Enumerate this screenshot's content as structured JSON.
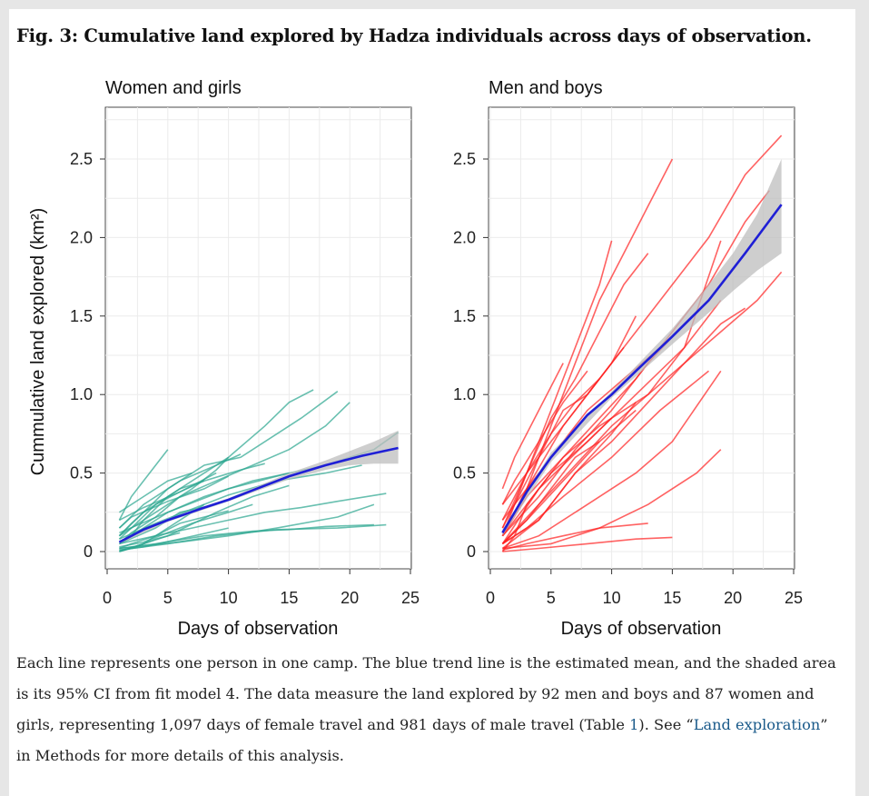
{
  "figure": {
    "title": "Fig. 3: Cumulative land explored by Hadza individuals across days of observation.",
    "caption_parts": {
      "p1": "Each line represents one person in one camp. The blue trend line is the estimated mean, and the shaded area is its 95% CI from fit model 4. The data measure the land explored by 92 men and boys and 87 women and girls, representing 1,097 days of female travel and 981 days of male travel (Table ",
      "link1": "1",
      "p2": "). See “",
      "link2": "Land exploration",
      "p3": "” in Methods for more details of this analysis."
    }
  },
  "chart_data": [
    {
      "type": "line",
      "title": "Women and girls",
      "xlabel": "Days of observation",
      "ylabel": "Cummulative land explored (km²)",
      "xlim": [
        0,
        25
      ],
      "ylim": [
        0,
        2.5
      ],
      "xticks": [
        "0",
        "5",
        "10",
        "15",
        "20",
        "25"
      ],
      "yticks": [
        "0",
        "0.5",
        "1.0",
        "1.5",
        "2.0",
        "2.5"
      ],
      "grid": true,
      "colors": {
        "individual": "#2aa58f",
        "trend": "#1f1fd6",
        "ci": "#bdbdbd"
      },
      "trend": {
        "x": [
          1,
          3,
          5,
          8,
          10,
          12,
          15,
          18,
          21,
          24
        ],
        "y": [
          0.06,
          0.14,
          0.2,
          0.28,
          0.33,
          0.39,
          0.48,
          0.55,
          0.61,
          0.66
        ]
      },
      "ci": {
        "x": [
          1,
          5,
          10,
          15,
          18,
          20,
          22,
          24
        ],
        "lower": [
          0.05,
          0.19,
          0.32,
          0.46,
          0.52,
          0.55,
          0.56,
          0.56
        ],
        "upper": [
          0.07,
          0.21,
          0.34,
          0.5,
          0.58,
          0.64,
          0.7,
          0.77
        ]
      },
      "individuals_count": 87,
      "sample_lines": [
        {
          "x": [
            1,
            2,
            3,
            5,
            8,
            10,
            13,
            15,
            17
          ],
          "y": [
            0.05,
            0.1,
            0.2,
            0.35,
            0.5,
            0.6,
            0.8,
            0.95,
            1.03
          ]
        },
        {
          "x": [
            1,
            3,
            5,
            8,
            11,
            14,
            16,
            19
          ],
          "y": [
            0.1,
            0.25,
            0.4,
            0.55,
            0.6,
            0.75,
            0.85,
            1.02
          ]
        },
        {
          "x": [
            1,
            2,
            4,
            6,
            9,
            12,
            15,
            18,
            20
          ],
          "y": [
            0.05,
            0.12,
            0.22,
            0.35,
            0.45,
            0.55,
            0.65,
            0.8,
            0.95
          ]
        },
        {
          "x": [
            1,
            3,
            5,
            8,
            12,
            15,
            18,
            20,
            22,
            24
          ],
          "y": [
            0.05,
            0.15,
            0.25,
            0.35,
            0.45,
            0.5,
            0.55,
            0.6,
            0.65,
            0.76
          ]
        },
        {
          "x": [
            1,
            2,
            4,
            5
          ],
          "y": [
            0.2,
            0.35,
            0.55,
            0.65
          ]
        },
        {
          "x": [
            1,
            3,
            6,
            9,
            11
          ],
          "y": [
            0.15,
            0.3,
            0.45,
            0.55,
            0.62
          ]
        },
        {
          "x": [
            1,
            4,
            7,
            10,
            13,
            16,
            19,
            23
          ],
          "y": [
            0.05,
            0.1,
            0.15,
            0.2,
            0.25,
            0.28,
            0.32,
            0.37
          ]
        },
        {
          "x": [
            1,
            4,
            8,
            12,
            15,
            18,
            22
          ],
          "y": [
            0.02,
            0.05,
            0.1,
            0.13,
            0.14,
            0.16,
            0.17
          ]
        },
        {
          "x": [
            1,
            5,
            9,
            14,
            19,
            23
          ],
          "y": [
            0.01,
            0.05,
            0.1,
            0.14,
            0.15,
            0.17
          ]
        },
        {
          "x": [
            1,
            3,
            5,
            7,
            9,
            10
          ],
          "y": [
            0.1,
            0.2,
            0.3,
            0.4,
            0.52,
            0.6
          ]
        },
        {
          "x": [
            1,
            2,
            4,
            6,
            8
          ],
          "y": [
            0.02,
            0.05,
            0.1,
            0.2,
            0.3
          ]
        },
        {
          "x": [
            1,
            3,
            5,
            7,
            10,
            12
          ],
          "y": [
            0.03,
            0.06,
            0.12,
            0.18,
            0.25,
            0.3
          ]
        },
        {
          "x": [
            1,
            4,
            7,
            10,
            14,
            18,
            21
          ],
          "y": [
            0.08,
            0.18,
            0.27,
            0.36,
            0.45,
            0.5,
            0.55
          ]
        },
        {
          "x": [
            1,
            2,
            3,
            6,
            8
          ],
          "y": [
            0.1,
            0.18,
            0.25,
            0.4,
            0.45
          ]
        },
        {
          "x": [
            1,
            3,
            6,
            10
          ],
          "y": [
            0.01,
            0.03,
            0.08,
            0.15
          ]
        },
        {
          "x": [
            1,
            5,
            9,
            12,
            15
          ],
          "y": [
            0.0,
            0.1,
            0.25,
            0.35,
            0.42
          ]
        },
        {
          "x": [
            1,
            2,
            5,
            8,
            10
          ],
          "y": [
            0.15,
            0.22,
            0.32,
            0.4,
            0.48
          ]
        },
        {
          "x": [
            1,
            3,
            6,
            8,
            11,
            13
          ],
          "y": [
            0.2,
            0.28,
            0.38,
            0.45,
            0.52,
            0.56
          ]
        },
        {
          "x": [
            1,
            4,
            6,
            9
          ],
          "y": [
            0.05,
            0.15,
            0.25,
            0.3
          ]
        },
        {
          "x": [
            1,
            2,
            3,
            4,
            6
          ],
          "y": [
            0.0,
            0.02,
            0.05,
            0.08,
            0.12
          ]
        },
        {
          "x": [
            1,
            6,
            10,
            14,
            19,
            22
          ],
          "y": [
            0.02,
            0.06,
            0.1,
            0.15,
            0.22,
            0.3
          ]
        },
        {
          "x": [
            1,
            3,
            5,
            7
          ],
          "y": [
            0.25,
            0.35,
            0.45,
            0.5
          ]
        },
        {
          "x": [
            1,
            5,
            10,
            15
          ],
          "y": [
            0.12,
            0.25,
            0.4,
            0.5
          ]
        },
        {
          "x": [
            1,
            2,
            4,
            7,
            9
          ],
          "y": [
            0.08,
            0.15,
            0.3,
            0.42,
            0.5
          ]
        },
        {
          "x": [
            1,
            3,
            4,
            6,
            8,
            10
          ],
          "y": [
            0.0,
            0.05,
            0.1,
            0.18,
            0.22,
            0.26
          ]
        }
      ]
    },
    {
      "type": "line",
      "title": "Men and boys",
      "xlabel": "Days of observation",
      "ylabel": "",
      "xlim": [
        0,
        25
      ],
      "ylim": [
        0,
        2.5
      ],
      "xticks": [
        "0",
        "5",
        "10",
        "15",
        "20",
        "25"
      ],
      "yticks": [
        "0",
        "0.5",
        "1.0",
        "1.5",
        "2.0",
        "2.5"
      ],
      "grid": true,
      "colors": {
        "individual": "#ff2020",
        "trend": "#1f1fd6",
        "ci": "#bdbdbd"
      },
      "trend": {
        "x": [
          1,
          3,
          5,
          8,
          10,
          12,
          15,
          18,
          21,
          24
        ],
        "y": [
          0.12,
          0.38,
          0.6,
          0.87,
          1.0,
          1.15,
          1.37,
          1.6,
          1.9,
          2.21
        ]
      },
      "ci": {
        "x": [
          1,
          5,
          10,
          15,
          18,
          20,
          22,
          24
        ],
        "lower": [
          0.1,
          0.57,
          0.98,
          1.32,
          1.52,
          1.66,
          1.79,
          1.9
        ],
        "upper": [
          0.14,
          0.63,
          1.02,
          1.42,
          1.7,
          1.9,
          2.15,
          2.5
        ]
      },
      "individuals_count": 92,
      "sample_lines": [
        {
          "x": [
            1,
            3,
            5,
            7,
            9,
            11,
            13,
            15
          ],
          "y": [
            0.1,
            0.4,
            0.8,
            1.2,
            1.6,
            1.9,
            2.2,
            2.5
          ]
        },
        {
          "x": [
            1,
            3,
            6,
            9,
            12,
            15,
            18,
            21,
            24
          ],
          "y": [
            0.1,
            0.4,
            0.8,
            1.1,
            1.4,
            1.7,
            2.0,
            2.4,
            2.65
          ]
        },
        {
          "x": [
            1,
            3,
            5,
            7,
            9,
            10
          ],
          "y": [
            0.15,
            0.5,
            0.9,
            1.3,
            1.7,
            1.98
          ]
        },
        {
          "x": [
            1,
            3,
            6,
            9,
            12,
            15,
            18,
            21,
            23
          ],
          "y": [
            0.1,
            0.3,
            0.6,
            0.85,
            1.1,
            1.4,
            1.7,
            2.1,
            2.3
          ]
        },
        {
          "x": [
            1,
            4,
            7,
            10,
            13,
            16,
            19,
            22,
            24
          ],
          "y": [
            0.05,
            0.3,
            0.55,
            0.8,
            1.0,
            1.2,
            1.4,
            1.6,
            1.78
          ]
        },
        {
          "x": [
            1,
            3,
            5,
            7,
            9,
            11,
            13
          ],
          "y": [
            0.2,
            0.5,
            0.85,
            1.1,
            1.4,
            1.7,
            1.9
          ]
        },
        {
          "x": [
            1,
            4,
            8,
            12,
            16,
            19
          ],
          "y": [
            0.05,
            0.4,
            0.7,
            1.0,
            1.3,
            1.6
          ]
        },
        {
          "x": [
            1,
            3,
            6,
            9,
            13,
            16,
            19
          ],
          "y": [
            0.1,
            0.35,
            0.6,
            0.8,
            1.0,
            1.3,
            1.98
          ]
        },
        {
          "x": [
            1,
            4,
            7,
            10,
            13,
            16,
            19,
            21
          ],
          "y": [
            0.05,
            0.2,
            0.5,
            0.7,
            0.95,
            1.2,
            1.45,
            1.55
          ]
        },
        {
          "x": [
            1,
            4,
            8,
            12,
            15,
            19
          ],
          "y": [
            0.02,
            0.1,
            0.3,
            0.5,
            0.7,
            1.15
          ]
        },
        {
          "x": [
            1,
            5,
            9,
            13,
            17,
            19
          ],
          "y": [
            0.02,
            0.05,
            0.15,
            0.3,
            0.5,
            0.65
          ]
        },
        {
          "x": [
            1,
            3,
            6,
            9,
            13
          ],
          "y": [
            0.01,
            0.05,
            0.1,
            0.15,
            0.18
          ]
        },
        {
          "x": [
            1,
            4,
            8,
            12,
            15
          ],
          "y": [
            0.0,
            0.02,
            0.05,
            0.08,
            0.09
          ]
        },
        {
          "x": [
            1,
            3,
            5,
            7,
            9,
            11
          ],
          "y": [
            0.3,
            0.5,
            0.7,
            0.9,
            1.1,
            1.3
          ]
        },
        {
          "x": [
            1,
            2,
            4,
            6,
            8,
            10,
            12
          ],
          "y": [
            0.1,
            0.3,
            0.6,
            0.9,
            1.0,
            1.2,
            1.5
          ]
        },
        {
          "x": [
            1,
            3,
            5,
            8,
            11,
            14
          ],
          "y": [
            0.2,
            0.4,
            0.6,
            0.9,
            1.1,
            1.3
          ]
        },
        {
          "x": [
            1,
            2,
            3,
            5,
            7,
            9
          ],
          "y": [
            0.15,
            0.3,
            0.5,
            0.75,
            0.95,
            1.1
          ]
        },
        {
          "x": [
            1,
            3,
            6,
            9,
            12
          ],
          "y": [
            0.05,
            0.2,
            0.45,
            0.7,
            0.9
          ]
        },
        {
          "x": [
            1,
            2,
            4,
            6,
            8
          ],
          "y": [
            0.3,
            0.45,
            0.7,
            0.95,
            1.15
          ]
        },
        {
          "x": [
            1,
            4,
            7,
            10,
            13,
            16,
            18
          ],
          "y": [
            0.1,
            0.35,
            0.65,
            0.9,
            1.2,
            1.45,
            1.6
          ]
        },
        {
          "x": [
            1,
            3,
            5,
            7,
            9
          ],
          "y": [
            0.05,
            0.2,
            0.4,
            0.6,
            0.7
          ]
        },
        {
          "x": [
            1,
            2,
            4,
            6
          ],
          "y": [
            0.4,
            0.6,
            0.9,
            1.2
          ]
        },
        {
          "x": [
            1,
            3,
            6,
            10,
            14,
            18
          ],
          "y": [
            0.05,
            0.15,
            0.35,
            0.6,
            0.9,
            1.15
          ]
        },
        {
          "x": [
            1,
            4,
            7,
            10,
            12
          ],
          "y": [
            0.02,
            0.2,
            0.5,
            0.75,
            0.95
          ]
        },
        {
          "x": [
            1,
            2,
            3,
            5,
            8,
            10
          ],
          "y": [
            0.0,
            0.1,
            0.3,
            0.5,
            0.7,
            0.85
          ]
        }
      ]
    }
  ]
}
